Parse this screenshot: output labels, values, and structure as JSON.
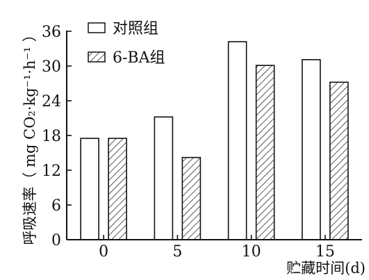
{
  "chart_data": {
    "type": "bar",
    "title": "",
    "xlabel": "贮藏时间(d)",
    "ylabel": "呼吸速率（ mg CO₂·kg⁻¹·h⁻¹ ）",
    "categories": [
      "0",
      "5",
      "10",
      "15"
    ],
    "series": [
      {
        "name": "对照组",
        "values": [
          17.5,
          21.2,
          34.2,
          31.1
        ],
        "pattern": "none"
      },
      {
        "name": "6-BA组",
        "values": [
          17.5,
          14.2,
          30.1,
          27.2
        ],
        "pattern": "hatch"
      }
    ],
    "ylim": [
      0,
      36
    ],
    "yticks": [
      "0",
      "6",
      "12",
      "18",
      "24",
      "30",
      "36"
    ],
    "grid": false,
    "legend_position": "top-left",
    "colors": {
      "stroke": "#111111",
      "fill": "#ffffff"
    }
  }
}
